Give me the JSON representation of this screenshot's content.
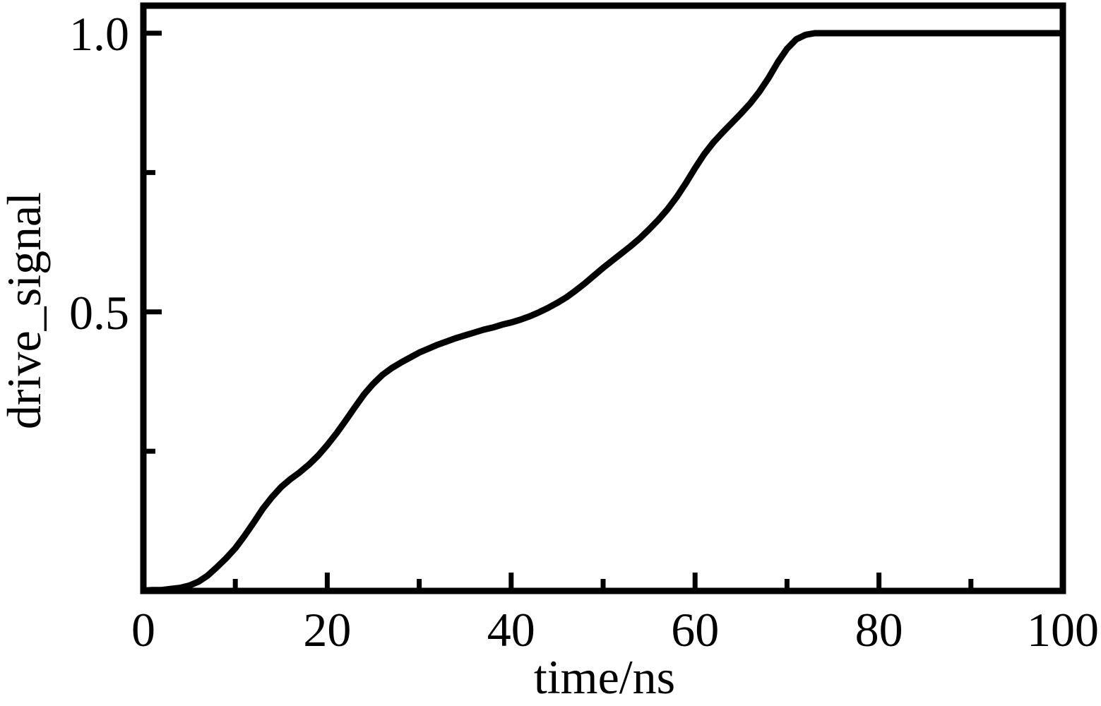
{
  "figure": {
    "background_color": "#ffffff",
    "line_color": "#000000",
    "frame": "full-box",
    "ticks_direction": "in"
  },
  "chart_data": {
    "type": "line",
    "title": "",
    "xlabel": "time/ns",
    "ylabel": "drive_signal",
    "xlim": [
      0,
      100
    ],
    "ylim": [
      0,
      1.0
    ],
    "grid": false,
    "legend_position": "none",
    "x_axis": {
      "major_tick_values": [
        0,
        20,
        40,
        60,
        80,
        100
      ],
      "major_tick_labels": [
        "0",
        "20",
        "40",
        "60",
        "80",
        "100"
      ],
      "minor_tick_values": [
        10,
        30,
        50,
        70,
        90
      ]
    },
    "y_axis": {
      "major_tick_values": [
        0.5,
        1.0
      ],
      "major_tick_labels": [
        "0.5",
        "1.0"
      ],
      "minor_tick_values": [
        0.25,
        0.75
      ]
    },
    "series": [
      {
        "name": "drive_signal",
        "color": "#000000",
        "points": [
          [
            0,
            0.0
          ],
          [
            1,
            0.001
          ],
          [
            2,
            0.001
          ],
          [
            3,
            0.003
          ],
          [
            4,
            0.005
          ],
          [
            5,
            0.009
          ],
          [
            6,
            0.016
          ],
          [
            7,
            0.027
          ],
          [
            8,
            0.042
          ],
          [
            9,
            0.058
          ],
          [
            10,
            0.076
          ],
          [
            11,
            0.098
          ],
          [
            12,
            0.122
          ],
          [
            13,
            0.147
          ],
          [
            14,
            0.168
          ],
          [
            15,
            0.186
          ],
          [
            16,
            0.2
          ],
          [
            17,
            0.212
          ],
          [
            18,
            0.226
          ],
          [
            19,
            0.242
          ],
          [
            20,
            0.261
          ],
          [
            21,
            0.282
          ],
          [
            22,
            0.305
          ],
          [
            23,
            0.329
          ],
          [
            24,
            0.352
          ],
          [
            25,
            0.371
          ],
          [
            26,
            0.387
          ],
          [
            27,
            0.399
          ],
          [
            28,
            0.409
          ],
          [
            29,
            0.418
          ],
          [
            30,
            0.427
          ],
          [
            31,
            0.434
          ],
          [
            32,
            0.441
          ],
          [
            33,
            0.447
          ],
          [
            34,
            0.453
          ],
          [
            35,
            0.458
          ],
          [
            36,
            0.463
          ],
          [
            37,
            0.468
          ],
          [
            38,
            0.472
          ],
          [
            39,
            0.477
          ],
          [
            40,
            0.481
          ],
          [
            41,
            0.486
          ],
          [
            42,
            0.492
          ],
          [
            43,
            0.499
          ],
          [
            44,
            0.507
          ],
          [
            45,
            0.516
          ],
          [
            46,
            0.526
          ],
          [
            47,
            0.538
          ],
          [
            48,
            0.551
          ],
          [
            49,
            0.565
          ],
          [
            50,
            0.579
          ],
          [
            51,
            0.592
          ],
          [
            52,
            0.605
          ],
          [
            53,
            0.618
          ],
          [
            54,
            0.632
          ],
          [
            55,
            0.648
          ],
          [
            56,
            0.665
          ],
          [
            57,
            0.684
          ],
          [
            58,
            0.706
          ],
          [
            59,
            0.731
          ],
          [
            60,
            0.758
          ],
          [
            61,
            0.783
          ],
          [
            62,
            0.804
          ],
          [
            63,
            0.822
          ],
          [
            64,
            0.839
          ],
          [
            65,
            0.856
          ],
          [
            66,
            0.874
          ],
          [
            67,
            0.895
          ],
          [
            68,
            0.92
          ],
          [
            69,
            0.948
          ],
          [
            70,
            0.972
          ],
          [
            71,
            0.989
          ],
          [
            72,
            0.997
          ],
          [
            73,
            1.0
          ],
          [
            74,
            1.0
          ],
          [
            76,
            1.0
          ],
          [
            80,
            1.0
          ],
          [
            85,
            1.0
          ],
          [
            90,
            1.0
          ],
          [
            95,
            1.0
          ],
          [
            100,
            1.0
          ]
        ]
      }
    ]
  }
}
